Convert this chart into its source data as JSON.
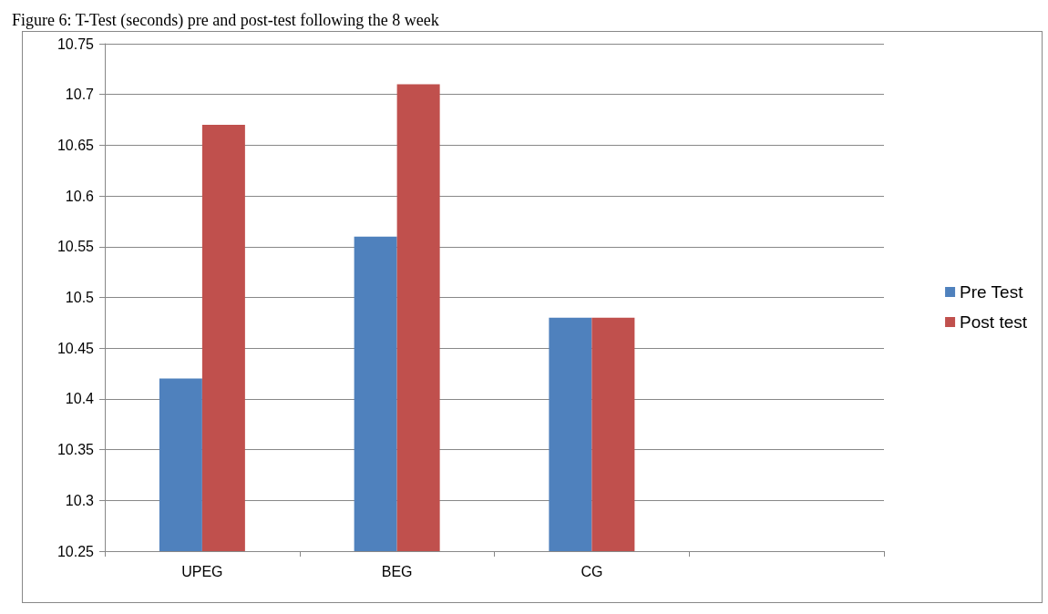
{
  "chart_data": {
    "type": "bar",
    "title": "Figure 6: T-Test (seconds) pre and post-test following the 8 week",
    "categories": [
      "UPEG",
      "BEG",
      "CG",
      null
    ],
    "series": [
      {
        "name": "Pre Test",
        "color": "#4f81bd",
        "values": [
          10.42,
          10.56,
          10.48,
          null
        ]
      },
      {
        "name": "Post test",
        "color": "#c0504d",
        "values": [
          10.67,
          10.71,
          10.48,
          null
        ]
      }
    ],
    "ylim": [
      10.25,
      10.75
    ],
    "yticks": [
      10.25,
      10.3,
      10.35,
      10.4,
      10.45,
      10.5,
      10.55,
      10.6,
      10.65,
      10.7,
      10.75
    ],
    "grid": "y",
    "legend": "right"
  }
}
